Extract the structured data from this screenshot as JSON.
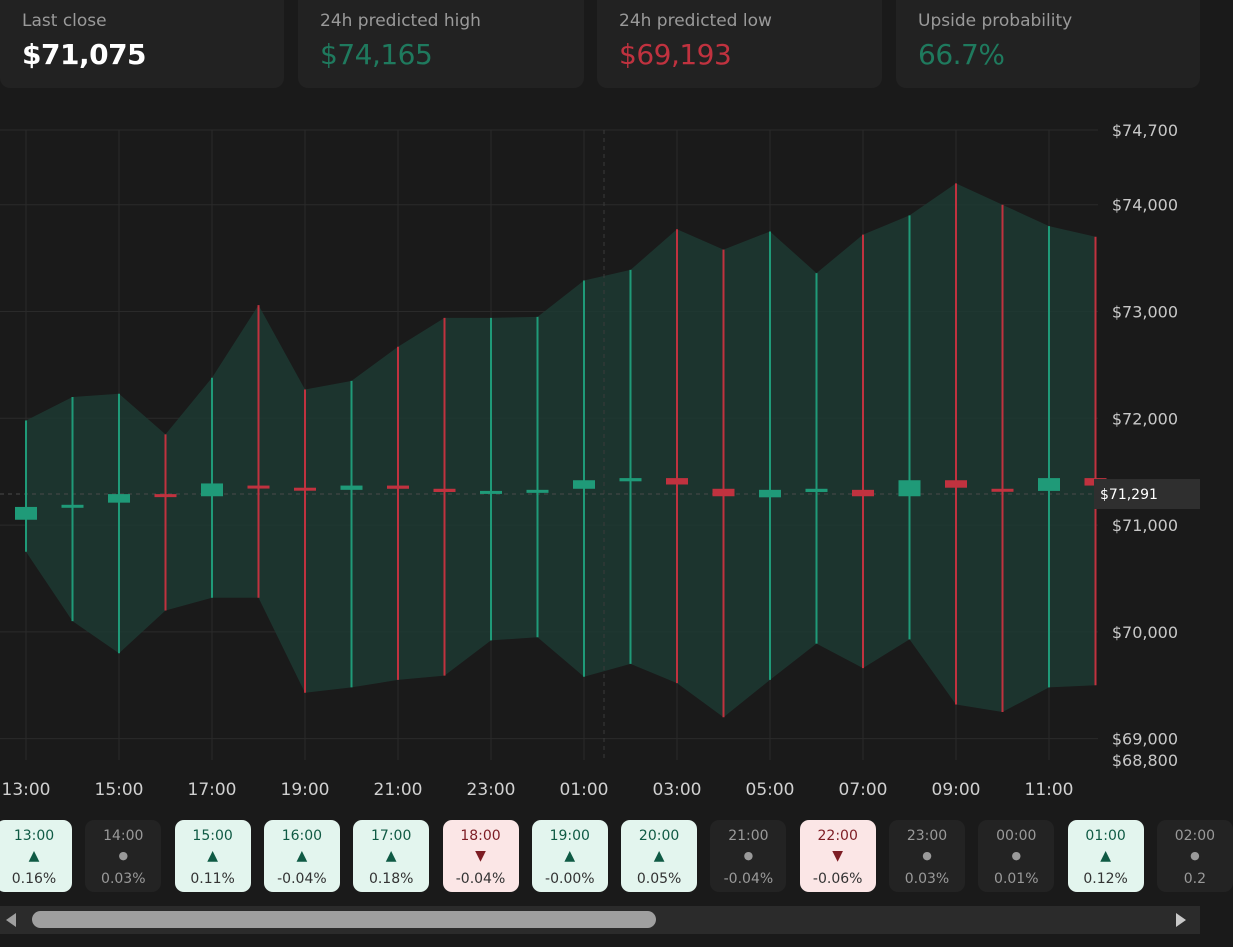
{
  "stats": [
    {
      "label": "Last close",
      "value": "$71,075",
      "tone": "neutral"
    },
    {
      "label": "24h predicted high",
      "value": "$74,165",
      "tone": "green"
    },
    {
      "label": "24h predicted low",
      "value": "$69,193",
      "tone": "red"
    },
    {
      "label": "Upside probability",
      "value": "66.7%",
      "tone": "green"
    }
  ],
  "chart_data": {
    "type": "candlestick-band",
    "y_ticks": [
      "$74,700",
      "$74,000",
      "$73,000",
      "$72,000",
      "$71,000",
      "$70,000",
      "$69,000",
      "$68,800"
    ],
    "y_tick_values": [
      74700,
      74000,
      73000,
      72000,
      71000,
      70000,
      69000,
      68800
    ],
    "ylim": [
      68800,
      74700
    ],
    "x_ticks": [
      "13:00",
      "15:00",
      "17:00",
      "19:00",
      "21:00",
      "23:00",
      "01:00",
      "03:00",
      "05:00",
      "07:00",
      "09:00",
      "11:00"
    ],
    "current_price_label": "$71,291",
    "current_price": 71291,
    "band_upper": [
      71980,
      72200,
      72230,
      71850,
      72380,
      73060,
      72270,
      72350,
      72670,
      72940,
      72940,
      72950,
      73290,
      73390,
      73770,
      73580,
      73750,
      73360,
      73720,
      73900,
      74200,
      74000,
      73800,
      73700
    ],
    "band_lower": [
      70750,
      70100,
      69800,
      70200,
      70320,
      70320,
      69430,
      69480,
      69550,
      69590,
      69920,
      69950,
      69580,
      69700,
      69520,
      69200,
      69550,
      69890,
      69660,
      69930,
      69320,
      69250,
      69480,
      69500
    ],
    "candles": [
      {
        "t": "13:00",
        "open": 71050,
        "close": 71170,
        "high": 71980,
        "low": 70750,
        "dir": "up"
      },
      {
        "t": "14:00",
        "open": 71170,
        "close": 71190,
        "high": 72200,
        "low": 70100,
        "dir": "up"
      },
      {
        "t": "15:00",
        "open": 71210,
        "close": 71290,
        "high": 72230,
        "low": 69800,
        "dir": "up"
      },
      {
        "t": "16:00",
        "open": 71290,
        "close": 71280,
        "high": 71850,
        "low": 70200,
        "dir": "down"
      },
      {
        "t": "17:00",
        "open": 71270,
        "close": 71390,
        "high": 72380,
        "low": 70320,
        "dir": "up"
      },
      {
        "t": "18:00",
        "open": 71370,
        "close": 71350,
        "high": 73060,
        "low": 70320,
        "dir": "down"
      },
      {
        "t": "19:00",
        "open": 71350,
        "close": 71340,
        "high": 72270,
        "low": 69430,
        "dir": "down"
      },
      {
        "t": "20:00",
        "open": 71330,
        "close": 71370,
        "high": 72350,
        "low": 69480,
        "dir": "up"
      },
      {
        "t": "21:00",
        "open": 71370,
        "close": 71340,
        "high": 72670,
        "low": 69550,
        "dir": "down"
      },
      {
        "t": "22:00",
        "open": 71340,
        "close": 71310,
        "high": 72940,
        "low": 69590,
        "dir": "down"
      },
      {
        "t": "23:00",
        "open": 71300,
        "close": 71320,
        "high": 72940,
        "low": 69920,
        "dir": "up"
      },
      {
        "t": "00:00",
        "open": 71310,
        "close": 71330,
        "high": 72950,
        "low": 69950,
        "dir": "up"
      },
      {
        "t": "01:00",
        "open": 71340,
        "close": 71420,
        "high": 73290,
        "low": 69580,
        "dir": "up"
      },
      {
        "t": "02:00",
        "open": 71410,
        "close": 71440,
        "high": 73390,
        "low": 69700,
        "dir": "up"
      },
      {
        "t": "03:00",
        "open": 71440,
        "close": 71380,
        "high": 73770,
        "low": 69520,
        "dir": "down"
      },
      {
        "t": "04:00",
        "open": 71340,
        "close": 71270,
        "high": 73580,
        "low": 69200,
        "dir": "down"
      },
      {
        "t": "05:00",
        "open": 71260,
        "close": 71330,
        "high": 73750,
        "low": 69550,
        "dir": "up"
      },
      {
        "t": "06:00",
        "open": 71310,
        "close": 71340,
        "high": 73360,
        "low": 69890,
        "dir": "up"
      },
      {
        "t": "07:00",
        "open": 71330,
        "close": 71270,
        "high": 73720,
        "low": 69660,
        "dir": "down"
      },
      {
        "t": "08:00",
        "open": 71270,
        "close": 71420,
        "high": 73900,
        "low": 69930,
        "dir": "up"
      },
      {
        "t": "09:00",
        "open": 71420,
        "close": 71350,
        "high": 74200,
        "low": 69320,
        "dir": "down"
      },
      {
        "t": "10:00",
        "open": 71340,
        "close": 71320,
        "high": 74000,
        "low": 69250,
        "dir": "down"
      },
      {
        "t": "11:00",
        "open": 71320,
        "close": 71440,
        "high": 73800,
        "low": 69480,
        "dir": "up"
      },
      {
        "t": "12:00",
        "open": 71440,
        "close": 71370,
        "high": 73700,
        "low": 69500,
        "dir": "down"
      }
    ],
    "colors": {
      "up": "#1f9a78",
      "down": "#c0323f",
      "band": "#1d3a32",
      "grid": "#2a2a2a",
      "bg": "#1a1a1a"
    },
    "grid": true
  },
  "hourly": [
    {
      "hour": "13:00",
      "change": "0.16%",
      "dir": "up"
    },
    {
      "hour": "14:00",
      "change": "0.03%",
      "dir": "flat"
    },
    {
      "hour": "15:00",
      "change": "0.11%",
      "dir": "up"
    },
    {
      "hour": "16:00",
      "change": "-0.04%",
      "dir": "up"
    },
    {
      "hour": "17:00",
      "change": "0.18%",
      "dir": "up"
    },
    {
      "hour": "18:00",
      "change": "-0.04%",
      "dir": "down"
    },
    {
      "hour": "19:00",
      "change": "-0.00%",
      "dir": "up"
    },
    {
      "hour": "20:00",
      "change": "0.05%",
      "dir": "up"
    },
    {
      "hour": "21:00",
      "change": "-0.04%",
      "dir": "flat"
    },
    {
      "hour": "22:00",
      "change": "-0.06%",
      "dir": "down"
    },
    {
      "hour": "23:00",
      "change": "0.03%",
      "dir": "flat"
    },
    {
      "hour": "00:00",
      "change": "0.01%",
      "dir": "flat"
    },
    {
      "hour": "01:00",
      "change": "0.12%",
      "dir": "up"
    },
    {
      "hour": "02:00",
      "change": "0.2",
      "dir": "flat"
    }
  ],
  "icons": {
    "up": "▲",
    "down": "▼",
    "flat": "●",
    "scroll_left": "scroll-left-icon",
    "scroll_right": "scroll-right-icon"
  }
}
